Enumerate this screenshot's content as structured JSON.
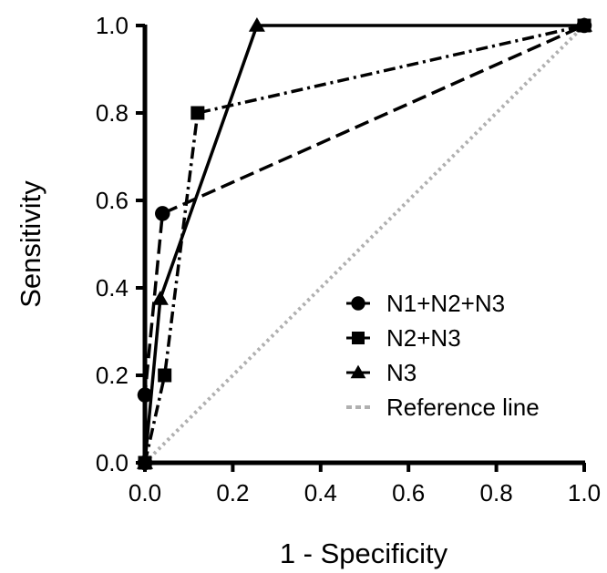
{
  "chart_data": {
    "type": "line",
    "title": "",
    "xlabel": "1 - Specificity",
    "ylabel": "Sensitivity",
    "xlim": [
      0.0,
      1.0
    ],
    "ylim": [
      0.0,
      1.0
    ],
    "x_ticks": [
      "0.0",
      "0.2",
      "0.4",
      "0.6",
      "0.8",
      "1.0"
    ],
    "y_ticks": [
      "0.0",
      "0.2",
      "0.4",
      "0.6",
      "0.8",
      "1.0"
    ],
    "grid": false,
    "legend_position": "bottom-right",
    "series": [
      {
        "name": "N1+N2+N3",
        "marker": "circle",
        "line_style": "dashed",
        "color": "#000000",
        "x": [
          0.0,
          0.0,
          0.04,
          1.0
        ],
        "y": [
          0.0,
          0.155,
          0.57,
          1.0
        ]
      },
      {
        "name": "N2+N3",
        "marker": "square",
        "line_style": "dash-dot",
        "color": "#000000",
        "x": [
          0.0,
          0.045,
          0.12,
          1.0
        ],
        "y": [
          0.0,
          0.2,
          0.8,
          1.0
        ]
      },
      {
        "name": "N3",
        "marker": "triangle",
        "line_style": "solid",
        "color": "#000000",
        "x": [
          0.0,
          0.035,
          0.255,
          1.0
        ],
        "y": [
          0.0,
          0.375,
          1.0,
          1.0
        ]
      },
      {
        "name": "Reference line",
        "marker": "none",
        "line_style": "dotted",
        "color": "#b0b0b0",
        "x": [
          0.0,
          1.0
        ],
        "y": [
          0.0,
          1.0
        ]
      }
    ]
  }
}
